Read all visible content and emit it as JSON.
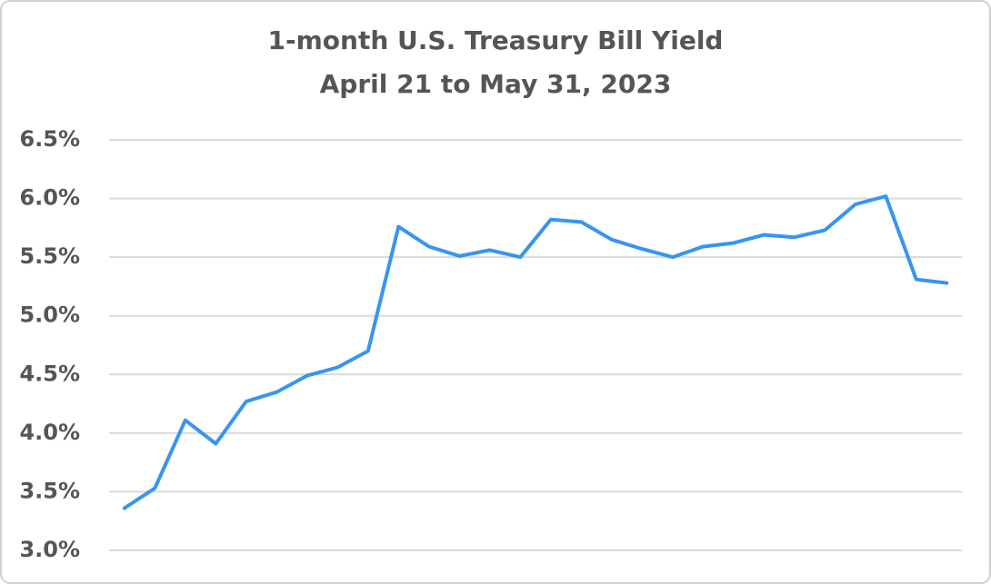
{
  "chart_data": {
    "type": "line",
    "title": "1-month U.S. Treasury Bill Yield",
    "subtitle": "April 21 to May 31, 2023",
    "categories": [
      null,
      null,
      null,
      null,
      null,
      null,
      null,
      null,
      null,
      null,
      null,
      null,
      null,
      null,
      null,
      null,
      null,
      null,
      null,
      null,
      null,
      null,
      null,
      null,
      null,
      null,
      null,
      null
    ],
    "series": [
      {
        "name": "1-month U.S. Treasury Bill Yield",
        "color": "#3795f0",
        "values": [
          3.36,
          3.53,
          4.11,
          3.91,
          4.27,
          4.35,
          4.49,
          4.56,
          4.7,
          5.76,
          5.59,
          5.51,
          5.56,
          5.5,
          5.82,
          5.8,
          5.65,
          5.57,
          5.5,
          5.59,
          5.62,
          5.69,
          5.67,
          5.73,
          5.95,
          6.02,
          5.31,
          5.28
        ]
      }
    ],
    "ylim": [
      3.0,
      6.5
    ],
    "yticks": [
      {
        "value": 3.0,
        "label": "3.0%"
      },
      {
        "value": 3.5,
        "label": "3.5%"
      },
      {
        "value": 4.0,
        "label": "4.0%"
      },
      {
        "value": 4.5,
        "label": "4.5%"
      },
      {
        "value": 5.0,
        "label": "5.0%"
      },
      {
        "value": 5.5,
        "label": "5.5%"
      },
      {
        "value": 6.0,
        "label": "6.0%"
      },
      {
        "value": 6.5,
        "label": "6.5%"
      }
    ],
    "grid": true
  }
}
